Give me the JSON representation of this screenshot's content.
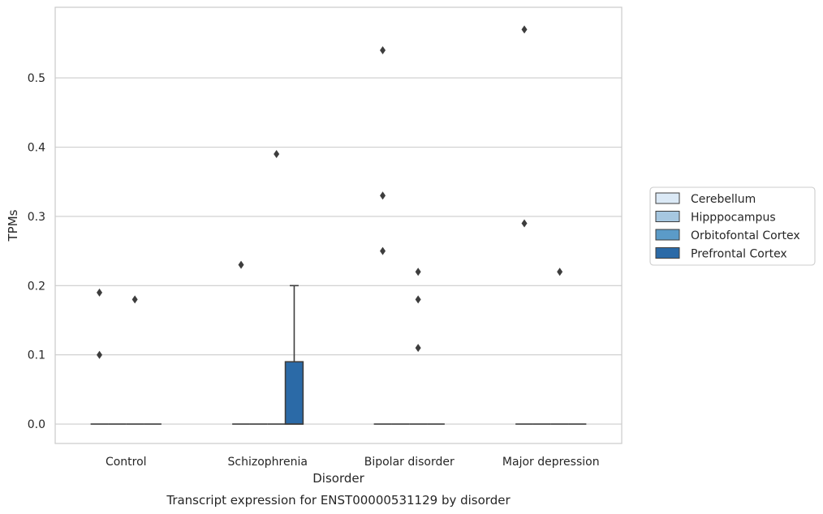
{
  "chart_data": {
    "type": "box",
    "title": "",
    "caption": "Transcript expression for ENST00000531129 by disorder",
    "xlabel": "Disorder",
    "ylabel": "TPMs",
    "ylim": [
      -0.028,
      0.602
    ],
    "yticks": [
      0.0,
      0.1,
      0.2,
      0.3,
      0.4,
      0.5
    ],
    "ytick_labels": [
      "0.0",
      "0.1",
      "0.2",
      "0.3",
      "0.4",
      "0.5"
    ],
    "grid": "horizontal",
    "legend_position": "right",
    "categories": [
      "Control",
      "Schizophrenia",
      "Bipolar disorder",
      "Major depression"
    ],
    "series": [
      {
        "name": "Cerebellum",
        "color": "#dbe9f6",
        "boxes": [
          {
            "q1": 0,
            "median": 0,
            "q3": 0,
            "whisker_low": 0,
            "whisker_high": 0,
            "outliers": [
              0.19,
              0.1
            ]
          },
          {
            "q1": 0,
            "median": 0,
            "q3": 0,
            "whisker_low": 0,
            "whisker_high": 0,
            "outliers": [
              0.23
            ]
          },
          {
            "q1": 0,
            "median": 0,
            "q3": 0,
            "whisker_low": 0,
            "whisker_high": 0,
            "outliers": [
              0.54,
              0.33,
              0.25
            ]
          },
          {
            "q1": 0,
            "median": 0,
            "q3": 0,
            "whisker_low": 0,
            "whisker_high": 0,
            "outliers": [
              0.57,
              0.29
            ]
          }
        ]
      },
      {
        "name": "Hipppocampus",
        "color": "#a6c7e0",
        "boxes": [
          {
            "q1": 0,
            "median": 0,
            "q3": 0,
            "whisker_low": 0,
            "whisker_high": 0,
            "outliers": []
          },
          {
            "q1": 0,
            "median": 0,
            "q3": 0,
            "whisker_low": 0,
            "whisker_high": 0,
            "outliers": []
          },
          {
            "q1": 0,
            "median": 0,
            "q3": 0,
            "whisker_low": 0,
            "whisker_high": 0,
            "outliers": []
          },
          {
            "q1": 0,
            "median": 0,
            "q3": 0,
            "whisker_low": 0,
            "whisker_high": 0,
            "outliers": []
          }
        ]
      },
      {
        "name": "Orbitofontal Cortex",
        "color": "#5b9bc8",
        "boxes": [
          {
            "q1": 0,
            "median": 0,
            "q3": 0,
            "whisker_low": 0,
            "whisker_high": 0,
            "outliers": [
              0.18
            ]
          },
          {
            "q1": 0,
            "median": 0,
            "q3": 0,
            "whisker_low": 0,
            "whisker_high": 0,
            "outliers": [
              0.39
            ]
          },
          {
            "q1": 0,
            "median": 0,
            "q3": 0,
            "whisker_low": 0,
            "whisker_high": 0,
            "outliers": [
              0.22,
              0.18,
              0.11
            ]
          },
          {
            "q1": 0,
            "median": 0,
            "q3": 0,
            "whisker_low": 0,
            "whisker_high": 0,
            "outliers": [
              0.22
            ]
          }
        ]
      },
      {
        "name": "Prefrontal Cortex",
        "color": "#2b6aa7",
        "boxes": [
          {
            "q1": 0,
            "median": 0,
            "q3": 0,
            "whisker_low": 0,
            "whisker_high": 0,
            "outliers": []
          },
          {
            "q1": 0,
            "median": 0,
            "q3": 0.09,
            "whisker_low": 0,
            "whisker_high": 0.2,
            "outliers": []
          },
          {
            "q1": 0,
            "median": 0,
            "q3": 0,
            "whisker_low": 0,
            "whisker_high": 0,
            "outliers": []
          },
          {
            "q1": 0,
            "median": 0,
            "q3": 0,
            "whisker_low": 0,
            "whisker_high": 0,
            "outliers": []
          }
        ]
      }
    ]
  }
}
